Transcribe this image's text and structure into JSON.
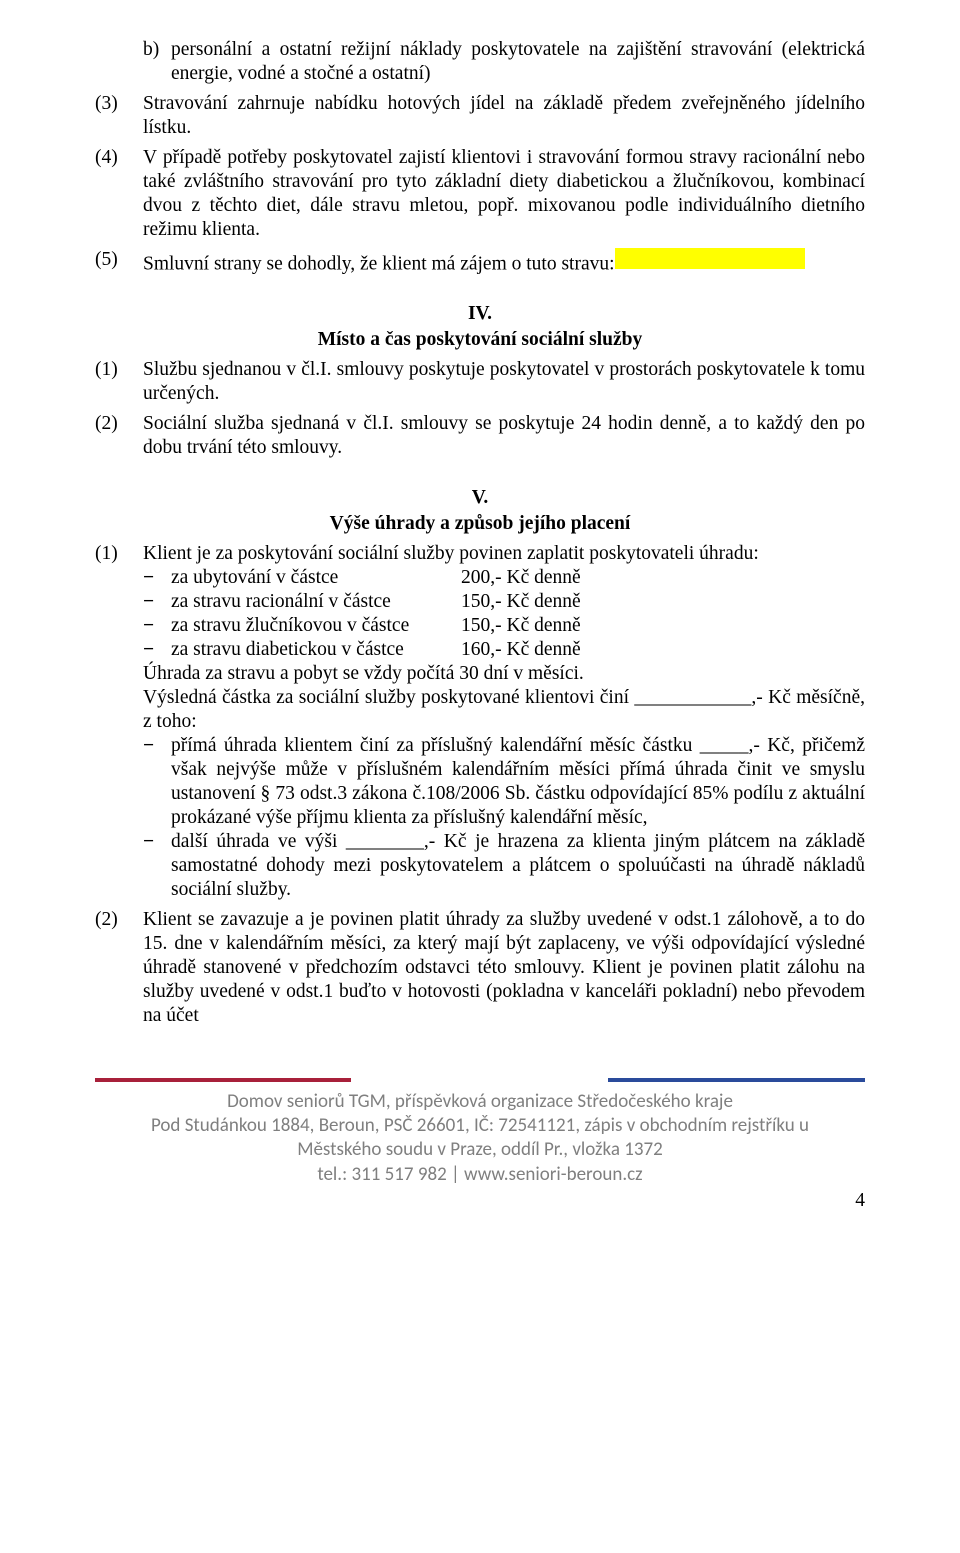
{
  "sub_b": {
    "label": "b)",
    "text": "personální a ostatní režijní náklady poskytovatele na zajištění stravování (elektrická energie, vodné a stočné a ostatní)"
  },
  "p3": {
    "num": "(3)",
    "text": "Stravování zahrnuje nabídku hotových jídel na základě předem zveřejněného jídelního lístku."
  },
  "p4": {
    "num": "(4)",
    "text": "V případě potřeby poskytovatel zajistí klientovi i stravování formou stravy racionální nebo také zvláštního stravování pro tyto základní diety diabetickou a žlučníkovou, kombinací dvou z těchto diet, dále stravu mletou, popř. mixovanou podle individuálního dietního režimu klienta."
  },
  "p5": {
    "num": "(5)",
    "text": "Smluvní strany se dohodly, že klient má zájem o tuto stravu:"
  },
  "sec4": {
    "roman": "IV.",
    "title": "Místo a čas poskytování sociální služby",
    "p1": {
      "num": "(1)",
      "text": "Službu sjednanou v čl.I. smlouvy poskytuje poskytovatel v prostorách poskytovatele k tomu určených."
    },
    "p2": {
      "num": "(2)",
      "text": "Sociální služba sjednaná v čl.I. smlouvy se poskytuje 24 hodin denně, a to každý den po dobu trvání této smlouvy."
    }
  },
  "sec5": {
    "roman": "V.",
    "title": "Výše úhrady a způsob jejího placení",
    "p1": {
      "num": "(1)",
      "lead": "Klient je za poskytování sociální služby povinen zaplatit poskytovateli úhradu:",
      "rows": [
        {
          "c1": "za ubytování v částce",
          "c2": "200,- Kč denně"
        },
        {
          "c1": "za stravu racionální v částce",
          "c2": "150,- Kč denně"
        },
        {
          "c1": "za stravu žlučníkovou v částce",
          "c2": "150,- Kč denně"
        },
        {
          "c1": "za stravu diabetickou v částce",
          "c2": "160,- Kč denně"
        }
      ],
      "line_uhrada": "Úhrada za stravu a pobyt se vždy počítá 30 dní v měsíci.",
      "line_vysledna": "Výsledná částka za sociální služby poskytované klientovi činí ____________,- Kč měsíčně, z toho:",
      "d1": "přímá úhrada klientem činí za příslušný kalendářní měsíc částku _____,- Kč, přičemž však nejvýše může v příslušném kalendářním měsíci přímá úhrada činit ve smyslu ustanovení § 73 odst.3 zákona č.108/2006 Sb. částku odpovídající 85% podílu z aktuální prokázané výše příjmu klienta za příslušný kalendářní měsíc,",
      "d2": "další úhrada ve výši ________,- Kč je hrazena za klienta jiným plátcem na základě samostatné dohody mezi poskytovatelem a plátcem o spoluúčasti na úhradě nákladů sociální služby."
    },
    "p2": {
      "num": "(2)",
      "text": "Klient se zavazuje a je povinen platit úhrady za služby uvedené v odst.1 zálohově, a to do 15. dne v kalendářním měsíci, za který mají být zaplaceny, ve výši odpovídající výsledné úhradě stanovené v předchozím odstavci této smlouvy. Klient je povinen platit zálohu na služby uvedené v odst.1 buďto v hotovosti (pokladna v kanceláři pokladní) nebo převodem na účet"
    }
  },
  "footer": {
    "l1": "Domov seniorů TGM, příspěvková organizace Středočeského kraje",
    "l2": "Pod Studánkou 1884, Beroun, PSČ 26601, IČ: 72541121, zápis v obchodním rejstříku u",
    "l3": "Městského soudu v Praze, oddíl Pr., vložka 1372",
    "l4": "tel.: 311 517 982  |  www.seniori-beroun.cz"
  },
  "page": "4"
}
